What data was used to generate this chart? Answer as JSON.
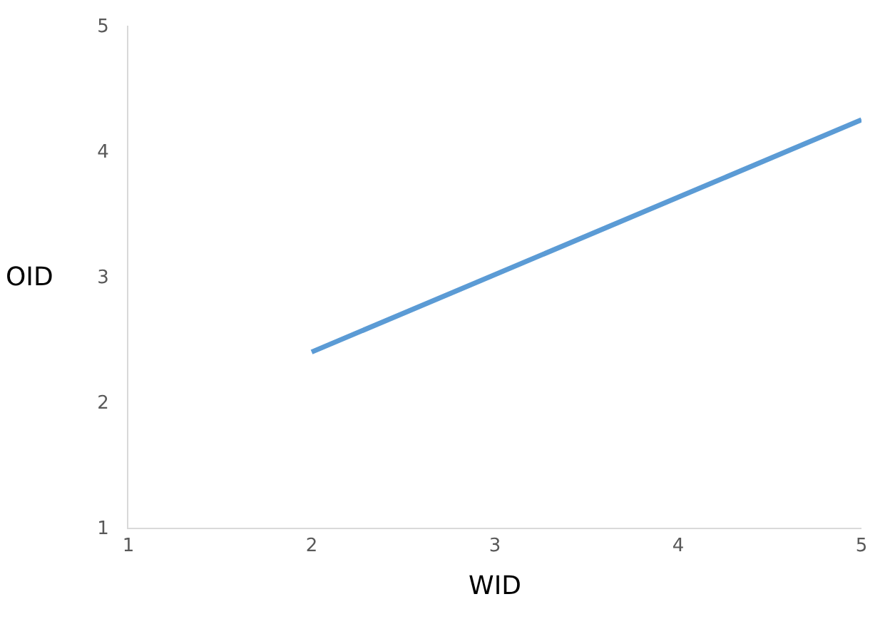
{
  "chart_data": {
    "type": "line",
    "xlabel": "WID",
    "ylabel": "OID",
    "x": [
      2,
      5
    ],
    "series": [
      {
        "color": "#5b9bd5",
        "values": [
          2.4,
          4.25
        ]
      }
    ],
    "xlim": [
      1,
      5
    ],
    "xticks": [
      1,
      2,
      3,
      4,
      5
    ],
    "ylim": [
      1,
      5
    ],
    "yticks": [
      1,
      2,
      3,
      4,
      5
    ],
    "grid": false
  }
}
